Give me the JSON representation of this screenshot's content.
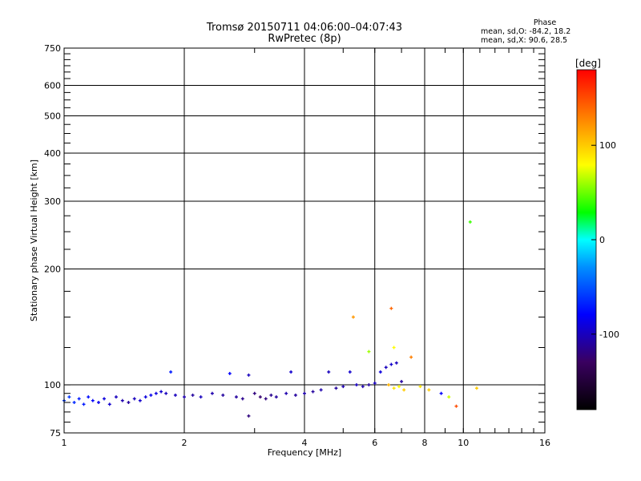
{
  "header": {
    "title": "Tromsø 20150711 04:06:00–04:07:43",
    "subtitle": "RwPretec (8p)"
  },
  "phase_stats": {
    "heading": "Phase",
    "o_line": "mean, sd,O: -84.2, 18.2",
    "x_line": "mean, sd,X:  90.6, 28.5"
  },
  "colorbar": {
    "unit_label": "[deg]",
    "tick_labels": [
      "100",
      "0",
      "-100"
    ],
    "tick_values": [
      100,
      0,
      -100
    ],
    "min": -180,
    "max": 180
  },
  "chart_data": {
    "type": "scatter",
    "title": "Tromsø 20150711 04:06:00–04:07:43",
    "subtitle": "RwPretec (8p)",
    "xlabel": "Frequency [MHz]",
    "ylabel": "Stationary phase Virtual Height [km]",
    "x_scale": "log",
    "y_scale": "log",
    "xlim": [
      1,
      16
    ],
    "ylim": [
      75,
      750
    ],
    "x_ticks": [
      1,
      2,
      4,
      6,
      8,
      10,
      16
    ],
    "x_tick_labels": [
      "1",
      "2",
      "4",
      "6",
      "8",
      "10",
      "16"
    ],
    "y_ticks": [
      75,
      100,
      200,
      300,
      400,
      500,
      600,
      750
    ],
    "y_tick_labels": [
      "75",
      "100",
      "200",
      "300",
      "400",
      "500",
      "600",
      "750"
    ],
    "grid": true,
    "points": [
      [
        1.0,
        91,
        -60
      ],
      [
        1.03,
        93,
        -60
      ],
      [
        1.06,
        90,
        -65
      ],
      [
        1.09,
        92,
        -70
      ],
      [
        1.12,
        89,
        -70
      ],
      [
        1.15,
        93,
        -75
      ],
      [
        1.18,
        91,
        -80
      ],
      [
        1.22,
        90,
        -85
      ],
      [
        1.26,
        92,
        -90
      ],
      [
        1.3,
        89,
        -95
      ],
      [
        1.35,
        93,
        -100
      ],
      [
        1.4,
        91,
        -105
      ],
      [
        1.45,
        90,
        -110
      ],
      [
        1.5,
        92,
        -100
      ],
      [
        1.55,
        91,
        -95
      ],
      [
        1.6,
        93,
        -90
      ],
      [
        1.65,
        94,
        -85
      ],
      [
        1.7,
        95,
        -90
      ],
      [
        1.75,
        96,
        -95
      ],
      [
        1.8,
        95,
        -100
      ],
      [
        1.85,
        108,
        -70
      ],
      [
        1.9,
        94,
        -100
      ],
      [
        2.0,
        93,
        -105
      ],
      [
        2.1,
        94,
        -110
      ],
      [
        2.2,
        93,
        -100
      ],
      [
        2.35,
        95,
        -105
      ],
      [
        2.5,
        94,
        -110
      ],
      [
        2.6,
        107,
        -80
      ],
      [
        2.7,
        93,
        -110
      ],
      [
        2.8,
        92,
        -115
      ],
      [
        2.9,
        106,
        -100
      ],
      [
        3.0,
        95,
        -120
      ],
      [
        3.1,
        93,
        -125
      ],
      [
        3.2,
        92,
        -120
      ],
      [
        3.3,
        94,
        -115
      ],
      [
        3.4,
        93,
        -110
      ],
      [
        3.6,
        95,
        -105
      ],
      [
        3.7,
        108,
        -95
      ],
      [
        3.8,
        94,
        -110
      ],
      [
        4.0,
        95,
        -105
      ],
      [
        4.2,
        96,
        -110
      ],
      [
        4.4,
        97,
        -105
      ],
      [
        4.6,
        108,
        -100
      ],
      [
        4.8,
        98,
        -110
      ],
      [
        5.0,
        99,
        -105
      ],
      [
        5.2,
        108,
        -95
      ],
      [
        5.4,
        100,
        -100
      ],
      [
        5.6,
        99,
        -105
      ],
      [
        5.8,
        100,
        -110
      ],
      [
        6.0,
        101,
        -100
      ],
      [
        6.2,
        108,
        -90
      ],
      [
        6.4,
        111,
        -100
      ],
      [
        6.6,
        113,
        -95
      ],
      [
        6.8,
        114,
        -100
      ],
      [
        7.0,
        102,
        -110
      ],
      [
        5.3,
        150,
        120
      ],
      [
        5.8,
        122,
        60
      ],
      [
        6.6,
        158,
        140
      ],
      [
        6.7,
        125,
        80
      ],
      [
        7.4,
        118,
        130
      ],
      [
        7.8,
        99,
        90
      ],
      [
        8.2,
        97,
        100
      ],
      [
        8.8,
        95,
        -80
      ],
      [
        9.2,
        93,
        70
      ],
      [
        9.6,
        88,
        150
      ],
      [
        10.8,
        98,
        100
      ],
      [
        10.4,
        265,
        40
      ],
      [
        6.5,
        100,
        110
      ],
      [
        6.7,
        98,
        90
      ],
      [
        6.9,
        99,
        80
      ],
      [
        7.1,
        97,
        100
      ],
      [
        2.9,
        83,
        -120
      ]
    ]
  }
}
